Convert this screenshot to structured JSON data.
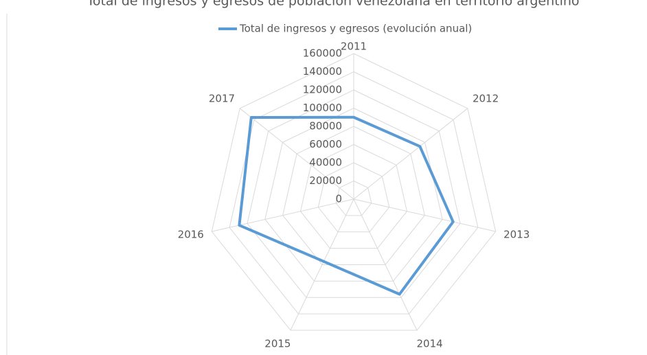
{
  "chart_data": {
    "type": "radar",
    "title": "Total de ingresos y egresos de población venezolana en territorio argentino",
    "categories": [
      "2011",
      "2012",
      "2013",
      "2014",
      "2015",
      "2016",
      "2017"
    ],
    "series": [
      {
        "name": "Total de ingresos y egresos (evolución anual)",
        "color": "#5b9bd5",
        "values": [
          90000,
          93000,
          112000,
          116000,
          76000,
          129000,
          144000
        ]
      }
    ],
    "ylim": [
      0,
      160000
    ],
    "yticks": [
      0,
      20000,
      40000,
      60000,
      80000,
      100000,
      120000,
      140000,
      160000
    ],
    "grid": true,
    "legend": "top"
  }
}
